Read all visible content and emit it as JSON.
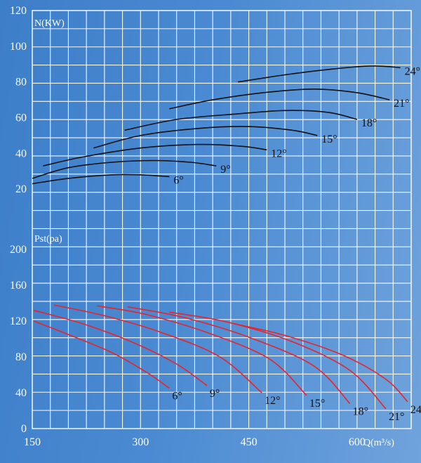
{
  "chart_data": [
    {
      "type": "line",
      "ylabel": "N(KW)",
      "xlabel": "",
      "xlim": [
        150,
        675
      ],
      "ylim": [
        0,
        120
      ],
      "yticks": [
        "20",
        "40",
        "60",
        "80",
        "100",
        "120"
      ],
      "grid": true,
      "line_color": "#111111",
      "series": [
        {
          "name": "6°",
          "x": [
            150,
            200,
            260,
            300,
            340
          ],
          "values": [
            23,
            26,
            28,
            28,
            27
          ]
        },
        {
          "name": "9°",
          "x": [
            150,
            200,
            260,
            320,
            370,
            405
          ],
          "values": [
            26,
            32,
            35,
            36,
            35,
            33
          ]
        },
        {
          "name": "12°",
          "x": [
            165,
            220,
            300,
            380,
            440,
            475
          ],
          "values": [
            33,
            38,
            43,
            45,
            44,
            42
          ]
        },
        {
          "name": "15°",
          "x": [
            235,
            300,
            380,
            450,
            510,
            545
          ],
          "values": [
            43,
            50,
            54,
            55,
            53,
            50
          ]
        },
        {
          "name": "18°",
          "x": [
            278,
            350,
            430,
            500,
            560,
            600
          ],
          "values": [
            53,
            59,
            62,
            64,
            63,
            59
          ]
        },
        {
          "name": "21°",
          "x": [
            340,
            400,
            470,
            540,
            600,
            645
          ],
          "values": [
            65,
            70,
            74,
            76,
            74,
            70
          ]
        },
        {
          "name": "24°",
          "x": [
            435,
            500,
            560,
            620,
            660
          ],
          "values": [
            80,
            84,
            87,
            89,
            88
          ]
        }
      ]
    },
    {
      "type": "line",
      "ylabel": "Pst(pa)",
      "xlabel": "Q(m³/s)",
      "xlim": [
        150,
        675
      ],
      "ylim": [
        0,
        200
      ],
      "xticks": [
        "150",
        "300",
        "450",
        "600"
      ],
      "yticks": [
        "0",
        "40",
        "80",
        "120",
        "160",
        "200"
      ],
      "grid": true,
      "line_color": "#e8242a",
      "series": [
        {
          "name": "6°",
          "x": [
            152,
            200,
            260,
            310,
            340
          ],
          "values": [
            120,
            105,
            85,
            62,
            45
          ]
        },
        {
          "name": "9°",
          "x": [
            152,
            220,
            290,
            350,
            392
          ],
          "values": [
            132,
            117,
            96,
            72,
            48
          ]
        },
        {
          "name": "12°",
          "x": [
            180,
            250,
            330,
            410,
            468
          ],
          "values": [
            138,
            126,
            107,
            80,
            40
          ]
        },
        {
          "name": "15°",
          "x": [
            240,
            310,
            400,
            480,
            530
          ],
          "values": [
            137,
            127,
            105,
            77,
            37
          ]
        },
        {
          "name": "18°",
          "x": [
            282,
            360,
            450,
            540,
            590
          ],
          "values": [
            136,
            124,
            102,
            70,
            28
          ]
        },
        {
          "name": "21°",
          "x": [
            340,
            420,
            510,
            590,
            640
          ],
          "values": [
            130,
            119,
            97,
            65,
            22
          ]
        },
        {
          "name": "24°",
          "x": [
            430,
            500,
            580,
            640,
            670
          ],
          "values": [
            117,
            104,
            82,
            55,
            30
          ]
        }
      ]
    }
  ]
}
